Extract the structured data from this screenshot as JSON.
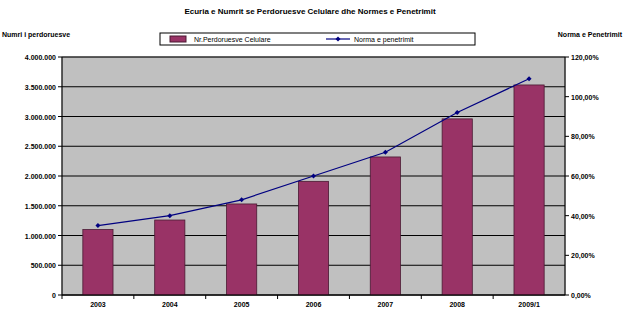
{
  "chart_data": {
    "type": "bar",
    "title": "Ecuria e Numrit se Perdoruesve Celulare dhe Normes e Penetrimit",
    "y_label": "Numri i perdoruesve",
    "y2_label": "Norma e Penetrimit",
    "categories": [
      "2003",
      "2004",
      "2005",
      "2006",
      "2007",
      "2008",
      "2009/1"
    ],
    "series": [
      {
        "name": "Nr.Perdoruesve Celulare",
        "type": "bar",
        "color": "#993366",
        "values": [
          1100000,
          1260000,
          1530000,
          1910000,
          2320000,
          2960000,
          3530000
        ]
      },
      {
        "name": "Norma e penetrimit",
        "type": "line",
        "axis": "y2",
        "color": "#000080",
        "marker": "diamond",
        "values": [
          35,
          40,
          48,
          60,
          72,
          92,
          109
        ]
      }
    ],
    "ylim": [
      0,
      4000000
    ],
    "yticks": [
      0,
      {
        "value": 500000,
        "label": "500.000"
      },
      {
        "value": 1000000,
        "label": "1.000.000"
      },
      {
        "value": 1500000,
        "label": "1.500.000"
      },
      {
        "value": 2000000,
        "label": "2.000.000"
      },
      {
        "value": 2500000,
        "label": "2.500.000"
      },
      {
        "value": 3000000,
        "label": "3.000.000"
      },
      {
        "value": 3500000,
        "label": "3.500.000"
      },
      {
        "value": 4000000,
        "label": "4.000.000"
      }
    ],
    "y2lim": [
      0,
      120
    ],
    "y2ticks": [
      {
        "value": 0,
        "label": "0,00%"
      },
      {
        "value": 20,
        "label": "20,00%"
      },
      {
        "value": 40,
        "label": "40,00%"
      },
      {
        "value": 60,
        "label": "60,00%"
      },
      {
        "value": 80,
        "label": "80,00%"
      },
      {
        "value": 100,
        "label": "100,00%"
      },
      {
        "value": 120,
        "label": "120,00%"
      }
    ],
    "grid": true,
    "legend": "top"
  }
}
